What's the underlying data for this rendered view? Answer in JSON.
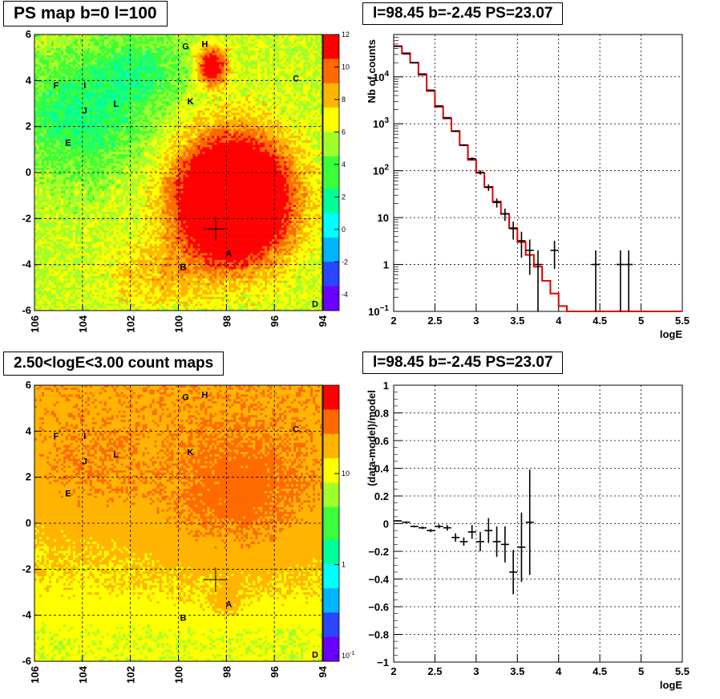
{
  "panels": {
    "ps_map_title": "PS map b=0 l=100",
    "spectrum_title": "l=98.45 b=-2.45 PS=23.07",
    "count_map_title": "2.50<logE<3.00 count maps",
    "residual_title": "l=98.45 b=-2.45 PS=23.07"
  },
  "colors": {
    "background": "#ffffff",
    "model_line": "#e00000",
    "data_points": "#000000",
    "palette": [
      "#6b00ff",
      "#2a46ff",
      "#00b4ff",
      "#00ffff",
      "#00ff9a",
      "#3aff3a",
      "#a0ff2a",
      "#ffff00",
      "#ffb400",
      "#ff6a00",
      "#ff0000"
    ]
  },
  "chart_data": [
    {
      "type": "heatmap",
      "title": "PS map b=0 l=100",
      "xlabel": "",
      "ylabel": "",
      "xlim": [
        106,
        94
      ],
      "ylim": [
        -6,
        6
      ],
      "x_ticks": [
        "106",
        "104",
        "102",
        "100",
        "98",
        "96",
        "94"
      ],
      "y_ticks": [
        "6",
        "4",
        "2",
        "0",
        "-2",
        "-4",
        "-6"
      ],
      "colorbar": {
        "min": -5,
        "max": 12,
        "ticks": [
          "12",
          "10",
          "8",
          "6",
          "4",
          "2",
          "0",
          "-2",
          "-4"
        ]
      },
      "grid": true,
      "marker_cross": {
        "l": 98.45,
        "b": -2.45
      },
      "source_labels": [
        {
          "label": "G",
          "l": 99.7,
          "b": 5.5
        },
        {
          "label": "H",
          "l": 98.9,
          "b": 5.6
        },
        {
          "label": "C",
          "l": 95.1,
          "b": 4.1
        },
        {
          "label": "F",
          "l": 105.1,
          "b": 3.8
        },
        {
          "label": "I",
          "l": 103.9,
          "b": 3.8
        },
        {
          "label": "L",
          "l": 102.6,
          "b": 3.0
        },
        {
          "label": "K",
          "l": 99.5,
          "b": 3.1
        },
        {
          "label": "J",
          "l": 103.9,
          "b": 2.7
        },
        {
          "label": "E",
          "l": 104.6,
          "b": 1.3
        },
        {
          "label": "A",
          "l": 97.9,
          "b": -3.5
        },
        {
          "label": "B",
          "l": 99.8,
          "b": -4.1
        },
        {
          "label": "D",
          "l": 94.3,
          "b": -5.7
        }
      ]
    },
    {
      "type": "line",
      "title": "l=98.45 b=-2.45 PS=23.07",
      "xlabel": "logE",
      "ylabel": "Nb of counts",
      "xlim": [
        2,
        5.5
      ],
      "ylim": [
        0.1,
        80000
      ],
      "ylog": true,
      "x_ticks": [
        "2",
        "2.5",
        "3",
        "3.5",
        "4",
        "4.5",
        "5",
        "5.5"
      ],
      "y_ticks": [
        {
          "label": "10",
          "sup": "4",
          "v": 10000
        },
        {
          "label": "10",
          "sup": "3",
          "v": 1000
        },
        {
          "label": "10",
          "sup": "2",
          "v": 100
        },
        {
          "label": "10",
          "sup": "",
          "v": 10
        },
        {
          "label": "1",
          "sup": "",
          "v": 1
        },
        {
          "label": "10",
          "sup": "−1",
          "v": 0.1
        }
      ],
      "grid": true,
      "series": [
        {
          "kind": "model-histogram",
          "bins": [
            2.0,
            2.1,
            2.2,
            2.3,
            2.4,
            2.5,
            2.6,
            2.7,
            2.8,
            2.9,
            3.0,
            3.1,
            3.2,
            3.3,
            3.4,
            3.5,
            3.6,
            3.7,
            3.8,
            3.9,
            4.0,
            4.1,
            4.2,
            4.3,
            4.4,
            5.5
          ],
          "values": [
            45000,
            32000,
            20000,
            11000,
            5000,
            2300,
            1300,
            700,
            350,
            170,
            90,
            45,
            22,
            12,
            6,
            3,
            1.6,
            0.9,
            0.45,
            0.24,
            0.13,
            0.1,
            0.1,
            0.1,
            0.1
          ]
        },
        {
          "kind": "data-points",
          "x": [
            2.05,
            2.15,
            2.25,
            2.35,
            2.45,
            2.55,
            2.65,
            2.75,
            2.85,
            2.95,
            3.05,
            3.15,
            3.25,
            3.35,
            3.45,
            3.55,
            3.65,
            3.75,
            3.95,
            4.45,
            4.75,
            4.85
          ],
          "y": [
            45000,
            31000,
            20000,
            11500,
            5200,
            2400,
            1350,
            690,
            350,
            180,
            92,
            44,
            21,
            12,
            5.8,
            3.2,
            2.0,
            1.0,
            2,
            1,
            1,
            1
          ],
          "yerr": [
            210,
            176,
            141,
            107,
            72,
            49,
            37,
            26,
            19,
            13,
            10,
            7,
            4.6,
            3.5,
            2.4,
            1.8,
            1.4,
            1.0,
            1.2,
            1.0,
            1.0,
            1.0
          ]
        }
      ]
    },
    {
      "type": "heatmap",
      "title": "2.50<logE<3.00 count maps",
      "xlabel": "",
      "ylabel": "",
      "xlim": [
        106,
        94
      ],
      "ylim": [
        -6,
        6
      ],
      "x_ticks": [
        "106",
        "104",
        "102",
        "100",
        "98",
        "96",
        "94"
      ],
      "y_ticks": [
        "6",
        "4",
        "2",
        "0",
        "-2",
        "-4",
        "-6"
      ],
      "colorbar": {
        "log": true,
        "ticks": [
          {
            "label": "10",
            "sup": "",
            "v": 10
          },
          {
            "label": "1",
            "sup": "",
            "v": 1
          },
          {
            "label": "10",
            "sup": "-1",
            "v": 0.1
          }
        ]
      },
      "grid": true,
      "marker_cross": {
        "l": 98.45,
        "b": -2.45
      },
      "source_labels": [
        {
          "label": "G",
          "l": 99.7,
          "b": 5.5
        },
        {
          "label": "H",
          "l": 98.9,
          "b": 5.6
        },
        {
          "label": "C",
          "l": 95.1,
          "b": 4.1
        },
        {
          "label": "F",
          "l": 105.1,
          "b": 3.8
        },
        {
          "label": "I",
          "l": 103.9,
          "b": 3.8
        },
        {
          "label": "L",
          "l": 102.6,
          "b": 3.0
        },
        {
          "label": "K",
          "l": 99.5,
          "b": 3.1
        },
        {
          "label": "J",
          "l": 103.9,
          "b": 2.7
        },
        {
          "label": "E",
          "l": 104.6,
          "b": 1.3
        },
        {
          "label": "A",
          "l": 97.9,
          "b": -3.5
        },
        {
          "label": "B",
          "l": 99.8,
          "b": -4.1
        },
        {
          "label": "D",
          "l": 94.3,
          "b": -5.7
        }
      ]
    },
    {
      "type": "scatter",
      "title": "l=98.45 b=-2.45 PS=23.07",
      "xlabel": "logE",
      "ylabel": "(data-model)/model",
      "xlim": [
        2,
        5.5
      ],
      "ylim": [
        -1,
        1
      ],
      "x_ticks": [
        "2",
        "2.5",
        "3",
        "3.5",
        "4",
        "4.5",
        "5",
        "5.5"
      ],
      "y_ticks": [
        "1",
        "0.8",
        "0.6",
        "0.4",
        "0.2",
        "0",
        "−0.2",
        "−0.4",
        "−0.6",
        "−0.8",
        "−1"
      ],
      "grid": true,
      "series": [
        {
          "kind": "data-points",
          "x": [
            2.05,
            2.15,
            2.25,
            2.35,
            2.45,
            2.55,
            2.65,
            2.75,
            2.85,
            2.95,
            3.05,
            3.15,
            3.25,
            3.35,
            3.45,
            3.55,
            3.65
          ],
          "y": [
            0.02,
            0.01,
            -0.02,
            -0.03,
            -0.05,
            -0.02,
            -0.03,
            -0.1,
            -0.13,
            -0.06,
            -0.13,
            -0.05,
            -0.13,
            -0.15,
            -0.35,
            -0.17,
            0.01
          ],
          "yerr": [
            0.005,
            0.006,
            0.007,
            0.009,
            0.012,
            0.014,
            0.02,
            0.03,
            0.03,
            0.05,
            0.07,
            0.09,
            0.11,
            0.13,
            0.16,
            0.25,
            0.38
          ]
        }
      ]
    }
  ]
}
